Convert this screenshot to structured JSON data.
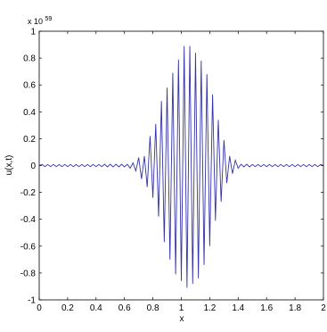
{
  "chart_data": {
    "type": "line",
    "title": "",
    "xlabel": "x",
    "ylabel": "u(x,t)",
    "exponent_label": {
      "base": "x 10",
      "power": "59"
    },
    "xlim": [
      0,
      2
    ],
    "ylim": [
      -1,
      1
    ],
    "x_ticks": [
      0,
      0.2,
      0.4,
      0.6,
      0.8,
      1,
      1.2,
      1.4,
      1.6,
      1.8,
      2
    ],
    "x_tick_labels": [
      "0",
      "0.2",
      "0.4",
      "0.6",
      "0.8",
      "1",
      "1.2",
      "1.4",
      "1.6",
      "1.8",
      "2"
    ],
    "y_ticks": [
      -1,
      -0.8,
      -0.6,
      -0.4,
      -0.2,
      0,
      0.2,
      0.4,
      0.6,
      0.8,
      1
    ],
    "y_tick_labels": [
      "-1",
      "-0.8",
      "-0.6",
      "-0.4",
      "-0.2",
      "0",
      "0.2",
      "0.4",
      "0.6",
      "0.8",
      "1"
    ],
    "grid": false,
    "series": [
      {
        "color": "#3333aa",
        "x": [
          0.0,
          0.02,
          0.04,
          0.06,
          0.08,
          0.1,
          0.12,
          0.14,
          0.16,
          0.18,
          0.2,
          0.22,
          0.24,
          0.26,
          0.28,
          0.3,
          0.32,
          0.34,
          0.36,
          0.38,
          0.4,
          0.42,
          0.44,
          0.46,
          0.48,
          0.5,
          0.52,
          0.54,
          0.56,
          0.58,
          0.6,
          0.62,
          0.64,
          0.66,
          0.68,
          0.7,
          0.72,
          0.74,
          0.76,
          0.78,
          0.8,
          0.82,
          0.84,
          0.86,
          0.88,
          0.9,
          0.92,
          0.94,
          0.96,
          0.98,
          1.0,
          1.02,
          1.04,
          1.06,
          1.08,
          1.1,
          1.12,
          1.14,
          1.16,
          1.18,
          1.2,
          1.22,
          1.24,
          1.26,
          1.28,
          1.3,
          1.32,
          1.34,
          1.36,
          1.38,
          1.4,
          1.42,
          1.44,
          1.46,
          1.48,
          1.5,
          1.52,
          1.54,
          1.56,
          1.58,
          1.6,
          1.62,
          1.64,
          1.66,
          1.68,
          1.7,
          1.72,
          1.74,
          1.76,
          1.78,
          1.8,
          1.82,
          1.84,
          1.86,
          1.88,
          1.9,
          1.92,
          1.94,
          1.96,
          1.98,
          2.0
        ],
        "y": [
          0,
          0.008,
          -0.008,
          0.008,
          -0.008,
          0.008,
          -0.008,
          0.008,
          -0.008,
          0.008,
          -0.008,
          0.008,
          -0.008,
          0.008,
          -0.008,
          0.008,
          -0.008,
          0.008,
          -0.008,
          0.008,
          -0.008,
          0.008,
          -0.008,
          0.01,
          -0.01,
          0.01,
          -0.01,
          0.01,
          -0.01,
          0.01,
          -0.01,
          0.01,
          -0.02,
          0.02,
          -0.04,
          0.06,
          -0.1,
          0.07,
          -0.16,
          0.22,
          -0.24,
          0.31,
          -0.38,
          0.48,
          -0.57,
          0.58,
          -0.7,
          0.69,
          -0.81,
          0.79,
          -0.86,
          0.89,
          -0.91,
          0.89,
          -0.88,
          0.84,
          -0.84,
          0.78,
          -0.74,
          0.68,
          -0.6,
          0.53,
          -0.41,
          0.34,
          -0.27,
          0.19,
          -0.13,
          0.07,
          -0.06,
          0.04,
          -0.02,
          0.01,
          -0.01,
          0.01,
          -0.01,
          0.008,
          -0.008,
          0.008,
          -0.008,
          0.008,
          -0.008,
          0.008,
          -0.008,
          0.008,
          -0.008,
          0.008,
          -0.008,
          0.008,
          -0.008,
          0.008,
          -0.008,
          0.008,
          -0.008,
          0.008,
          -0.008,
          0.008,
          -0.008,
          0.008,
          -0.008,
          0.008,
          0
        ]
      }
    ]
  }
}
